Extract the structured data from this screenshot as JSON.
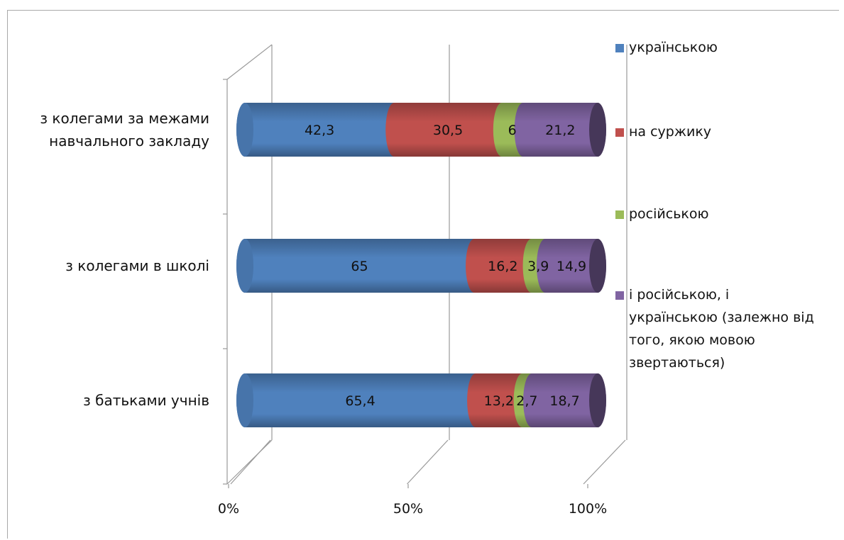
{
  "chart_data": {
    "type": "bar",
    "orientation": "horizontal",
    "stacked": "percent",
    "style": "3d-cylinder",
    "categories": [
      [
        "з колегами за межами",
        "навчального закладу"
      ],
      [
        "з колегами в школі"
      ],
      [
        "з батьками учнів"
      ]
    ],
    "series": [
      {
        "name": "українською",
        "color": "#4f81bd",
        "values": [
          42.3,
          65,
          65.4
        ]
      },
      {
        "name": "на суржику",
        "color": "#c0504d",
        "values": [
          30.5,
          16.2,
          13.2
        ]
      },
      {
        "name": "російською",
        "color": "#9bbb59",
        "values": [
          6,
          3.9,
          2.7
        ]
      },
      {
        "name": "і російською, і українською (залежно від того, якою мовою звертаються)",
        "color": "#8064a2",
        "values": [
          21.2,
          14.9,
          18.7
        ]
      }
    ],
    "data_labels": [
      [
        "42,3",
        "30,5",
        "6",
        "21,2"
      ],
      [
        "65",
        "16,2",
        "3,9",
        "14,9"
      ],
      [
        "65,4",
        "13,2",
        "2,7",
        "18,7"
      ]
    ],
    "x_ticks": [
      "0%",
      "50%",
      "100%"
    ],
    "legend": {
      "position": "right",
      "lines": [
        [
          "українською"
        ],
        [
          "на суржику"
        ],
        [
          "російською"
        ],
        [
          "і російською, і",
          "українською (залежно від",
          "того, якою мовою",
          "звертаються)"
        ]
      ]
    },
    "grid": true,
    "title": "",
    "xlabel": "",
    "ylabel": ""
  }
}
